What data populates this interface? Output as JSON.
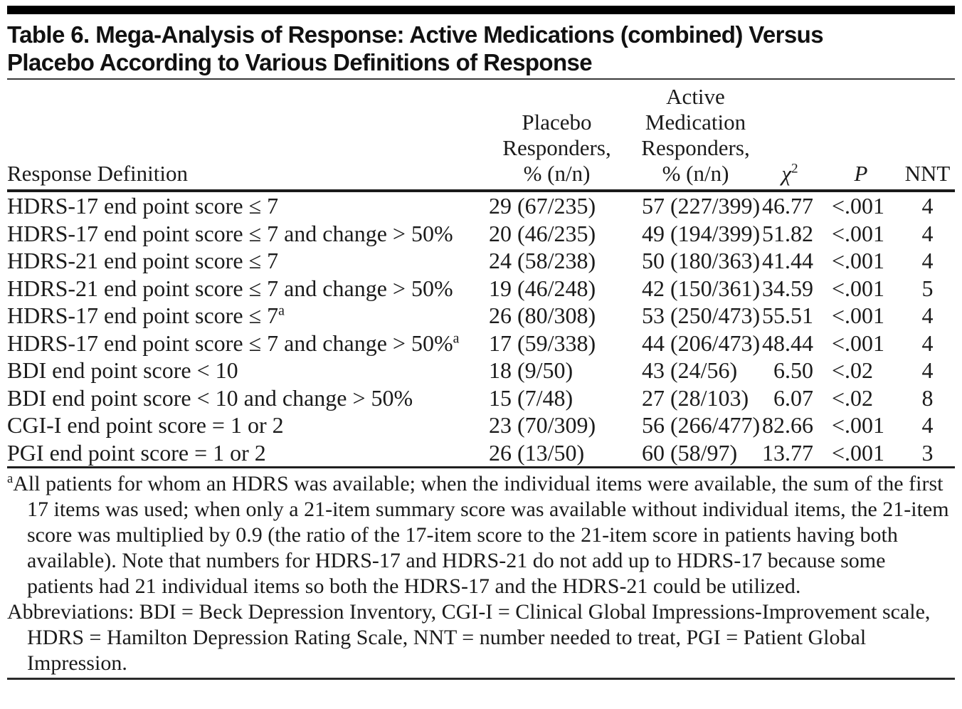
{
  "title_lines": [
    "Table 6. Mega-Analysis of Response: Active Medications (combined) Versus",
    "Placebo According to Various Definitions of Response"
  ],
  "table": {
    "header": {
      "response_definition": "Response Definition",
      "placebo_lines": [
        "Placebo",
        "Responders,",
        "% (n/n)"
      ],
      "active_lines": [
        "Active",
        "Medication",
        "Responders,",
        "% (n/n)"
      ],
      "chi2_base": "χ",
      "chi2_sup": "2",
      "p": "P",
      "nnt": "NNT"
    },
    "rows": [
      {
        "definition": "HDRS-17 end point score ≤ 7",
        "sup": "",
        "placebo": "29 (67/235)",
        "active": "57 (227/399)",
        "chi2": "46.77",
        "p": "<.001",
        "nnt": "4"
      },
      {
        "definition": "HDRS-17 end point score ≤ 7 and change > 50%",
        "sup": "",
        "placebo": "20 (46/235)",
        "active": "49 (194/399)",
        "chi2": "51.82",
        "p": "<.001",
        "nnt": "4"
      },
      {
        "definition": "HDRS-21 end point score ≤ 7",
        "sup": "",
        "placebo": "24 (58/238)",
        "active": "50 (180/363)",
        "chi2": "41.44",
        "p": "<.001",
        "nnt": "4"
      },
      {
        "definition": "HDRS-21 end point score ≤ 7 and change > 50%",
        "sup": "",
        "placebo": "19 (46/248)",
        "active": "42 (150/361)",
        "chi2": "34.59",
        "p": "<.001",
        "nnt": "5"
      },
      {
        "definition": "HDRS-17 end point score ≤ 7",
        "sup": "a",
        "placebo": "26 (80/308)",
        "active": "53 (250/473)",
        "chi2": "55.51",
        "p": "<.001",
        "nnt": "4"
      },
      {
        "definition": "HDRS-17 end point score ≤ 7 and change > 50%",
        "sup": "a",
        "placebo": "17 (59/338)",
        "active": "44 (206/473)",
        "chi2": "48.44",
        "p": "<.001",
        "nnt": "4"
      },
      {
        "definition": "BDI end point score < 10",
        "sup": "",
        "placebo": "18 (9/50)",
        "active": "43 (24/56)",
        "chi2": "6.50",
        "p": "<.02",
        "nnt": "4"
      },
      {
        "definition": "BDI end point score < 10 and change > 50%",
        "sup": "",
        "placebo": "15 (7/48)",
        "active": "27 (28/103)",
        "chi2": "6.07",
        "p": "<.02",
        "nnt": "8"
      },
      {
        "definition": "CGI-I end point score = 1 or 2",
        "sup": "",
        "placebo": "23 (70/309)",
        "active": "56 (266/477)",
        "chi2": "82.66",
        "p": "<.001",
        "nnt": "4"
      },
      {
        "definition": "PGI end point score = 1 or 2",
        "sup": "",
        "placebo": "26 (13/50)",
        "active": "60 (58/97)",
        "chi2": "13.77",
        "p": "<.001",
        "nnt": "3"
      }
    ]
  },
  "footnotes": {
    "a_marker": "a",
    "a_text": "All patients for whom an HDRS was available; when the individual items were available, the sum of the first 17 items was used; when only a 21-item summary score was available without individual items, the 21-item score was multiplied by 0.9 (the ratio of the 17-item score to the 21-item score in patients having both available). Note that numbers for HDRS-17 and HDRS-21 do not add up to HDRS-17 because some patients had 21 individual items so both the HDRS-17 and the HDRS-21 could be utilized.",
    "abbreviations": "Abbreviations: BDI = Beck Depression Inventory, CGI-I = Clinical Global Impressions-Improvement scale, HDRS = Hamilton Depression Rating Scale, NNT = number needed to treat, PGI = Patient Global Impression."
  }
}
